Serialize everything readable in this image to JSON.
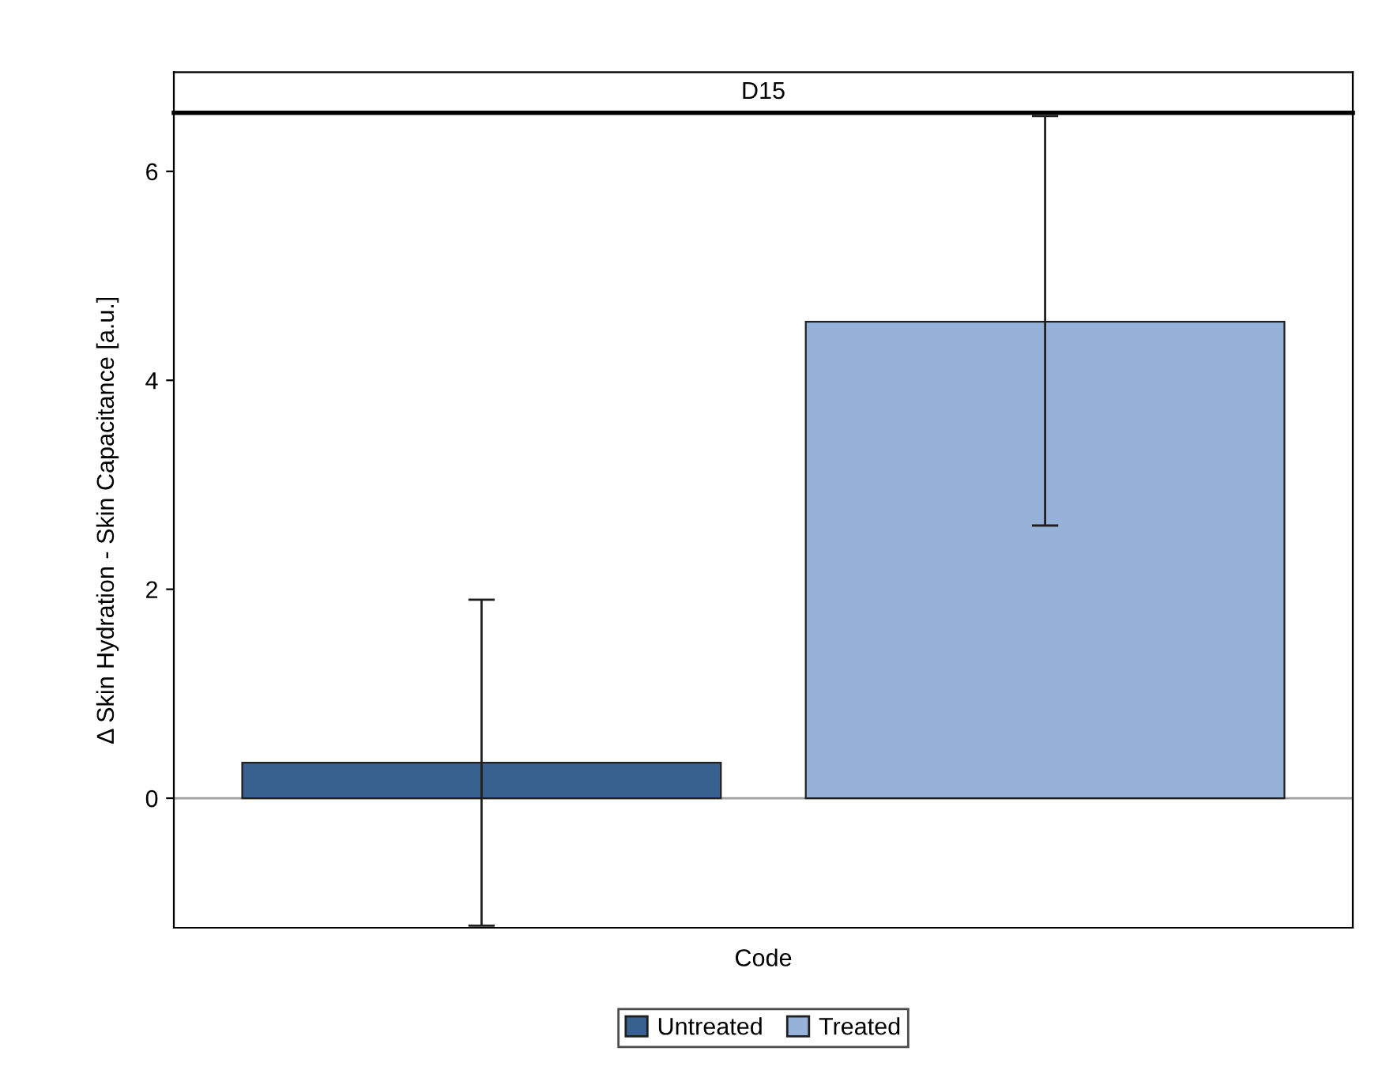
{
  "chart_data": {
    "type": "bar",
    "title": "D15",
    "xlabel": "Code",
    "ylabel": "Δ Skin Hydration - Skin Capacitance [a.u.]",
    "categories": [
      null
    ],
    "series": [
      {
        "name": "Untreated",
        "color": "#38618f",
        "values": [
          0.34
        ],
        "errors": [
          [
            -1.22,
            1.9
          ]
        ]
      },
      {
        "name": "Treated",
        "color": "#96b2d8",
        "values": [
          4.56
        ],
        "errors": [
          [
            2.61,
            6.53
          ]
        ]
      }
    ],
    "ylim": [
      -1.24,
      6.56
    ],
    "yticks": [
      0,
      2,
      4,
      6
    ],
    "grid": false,
    "legend": "bottom",
    "ref_lines": [
      {
        "axis": "y",
        "value": 0,
        "color": "#a0a0a0"
      }
    ]
  }
}
